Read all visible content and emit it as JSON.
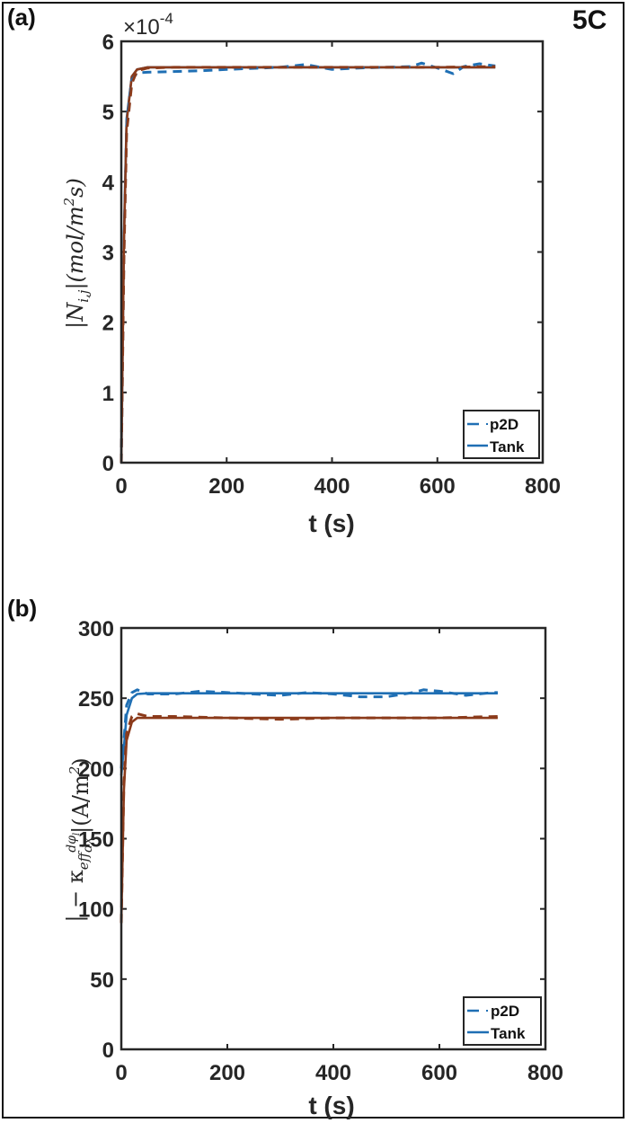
{
  "figure": {
    "corner_label": "5C"
  },
  "panels": [
    {
      "label": "(a)",
      "xlabel": "t (s)",
      "ylabel_text": "|N",
      "ylabel_sub": "i,j",
      "ylabel_rest": "|(mol/m",
      "ylabel_sup": "2",
      "ylabel_end": "s)",
      "exponent_prefix": "×10",
      "exponent_power": "-4",
      "xticks": [
        "0",
        "200",
        "400",
        "600",
        "800"
      ],
      "yticks": [
        "0",
        "1",
        "2",
        "3",
        "4",
        "5",
        "6"
      ],
      "legend": [
        {
          "label": "p2D",
          "style": "dashed"
        },
        {
          "label": "Tank",
          "style": "solid"
        }
      ]
    },
    {
      "label": "(b)",
      "xlabel": "t (s)",
      "ylabel_pre": "| − κ",
      "ylabel_sub": "eff",
      "ylabel_frac_num": "dφ",
      "ylabel_frac_num_sub": "l",
      "ylabel_frac_den": "dx",
      "ylabel_rest": "|(A/m",
      "ylabel_sup": "2",
      "ylabel_end": ")",
      "xticks": [
        "0",
        "200",
        "400",
        "600",
        "800"
      ],
      "yticks": [
        "0",
        "50",
        "100",
        "150",
        "200",
        "250",
        "300"
      ],
      "legend": [
        {
          "label": "p2D",
          "style": "dashed"
        },
        {
          "label": "Tank",
          "style": "solid"
        }
      ]
    }
  ],
  "colors": {
    "blue": "#1f6fb4",
    "brown": "#8b3a1a",
    "axis": "#262626"
  },
  "chart_data": [
    {
      "type": "line",
      "title": "(a)",
      "xlabel": "t (s)",
      "ylabel": "|N_{i,j}| (mol/m^2 s)",
      "y_scale_factor": "1e-4",
      "xlim": [
        0,
        800
      ],
      "ylim": [
        0,
        6
      ],
      "grid": false,
      "legend_position": "lower right",
      "series": [
        {
          "name": "p2D (blue, dashed)",
          "color": "#1f6fb4",
          "style": "dashed",
          "x": [
            0,
            5,
            10,
            20,
            30,
            50,
            100,
            150,
            200,
            300,
            350,
            400,
            450,
            500,
            550,
            570,
            600,
            630,
            650,
            680,
            710
          ],
          "y": [
            0,
            3.0,
            4.8,
            5.45,
            5.55,
            5.56,
            5.57,
            5.58,
            5.6,
            5.63,
            5.67,
            5.6,
            5.62,
            5.63,
            5.64,
            5.69,
            5.62,
            5.54,
            5.64,
            5.68,
            5.65
          ]
        },
        {
          "name": "Tank (blue, solid)",
          "color": "#1f6fb4",
          "style": "solid",
          "x": [
            0,
            5,
            10,
            20,
            30,
            50,
            100,
            200,
            400,
            600,
            710
          ],
          "y": [
            0,
            3.2,
            4.9,
            5.5,
            5.6,
            5.63,
            5.63,
            5.63,
            5.63,
            5.63,
            5.63
          ]
        },
        {
          "name": "p2D (brown, dashed)",
          "color": "#8b3a1a",
          "style": "dashed",
          "x": [
            0,
            5,
            10,
            20,
            30,
            50,
            100,
            200,
            400,
            600,
            710
          ],
          "y": [
            0,
            2.9,
            4.7,
            5.4,
            5.58,
            5.62,
            5.63,
            5.63,
            5.63,
            5.63,
            5.64
          ]
        },
        {
          "name": "Tank (brown, solid)",
          "color": "#8b3a1a",
          "style": "solid",
          "x": [
            0,
            5,
            10,
            20,
            30,
            50,
            100,
            200,
            400,
            600,
            710
          ],
          "y": [
            0,
            3.1,
            4.85,
            5.5,
            5.6,
            5.63,
            5.63,
            5.63,
            5.63,
            5.63,
            5.63
          ]
        }
      ]
    },
    {
      "type": "line",
      "title": "(b)",
      "xlabel": "t (s)",
      "ylabel": "|−κ_eff dφ_l/dx| (A/m^2)",
      "xlim": [
        0,
        800
      ],
      "ylim": [
        0,
        300
      ],
      "grid": false,
      "legend_position": "lower right",
      "series": [
        {
          "name": "p2D (blue, dashed)",
          "color": "#1f6fb4",
          "style": "dashed",
          "x": [
            0,
            5,
            10,
            20,
            30,
            50,
            100,
            150,
            200,
            300,
            350,
            400,
            450,
            500,
            550,
            570,
            600,
            650,
            700,
            710
          ],
          "y": [
            200,
            220,
            245,
            254,
            256,
            253,
            253,
            255,
            254,
            252,
            254,
            253,
            251,
            251,
            254,
            256,
            255,
            252,
            254,
            254
          ]
        },
        {
          "name": "Tank (blue, solid)",
          "color": "#1f6fb4",
          "style": "solid",
          "x": [
            0,
            5,
            10,
            20,
            30,
            50,
            100,
            200,
            400,
            600,
            710
          ],
          "y": [
            195,
            215,
            238,
            250,
            253,
            253.5,
            253.5,
            253.5,
            253.5,
            253.5,
            253.5
          ]
        },
        {
          "name": "p2D (brown, dashed)",
          "color": "#8b3a1a",
          "style": "dashed",
          "x": [
            0,
            5,
            10,
            20,
            30,
            50,
            100,
            200,
            300,
            400,
            500,
            600,
            710
          ],
          "y": [
            90,
            190,
            225,
            237,
            239,
            237,
            237,
            236,
            235,
            236,
            236,
            236,
            237
          ]
        },
        {
          "name": "Tank (brown, solid)",
          "color": "#8b3a1a",
          "style": "solid",
          "x": [
            0,
            5,
            10,
            20,
            30,
            50,
            100,
            200,
            400,
            600,
            710
          ],
          "y": [
            90,
            185,
            220,
            233,
            236,
            236,
            236,
            236,
            236,
            236,
            236
          ]
        }
      ]
    }
  ]
}
